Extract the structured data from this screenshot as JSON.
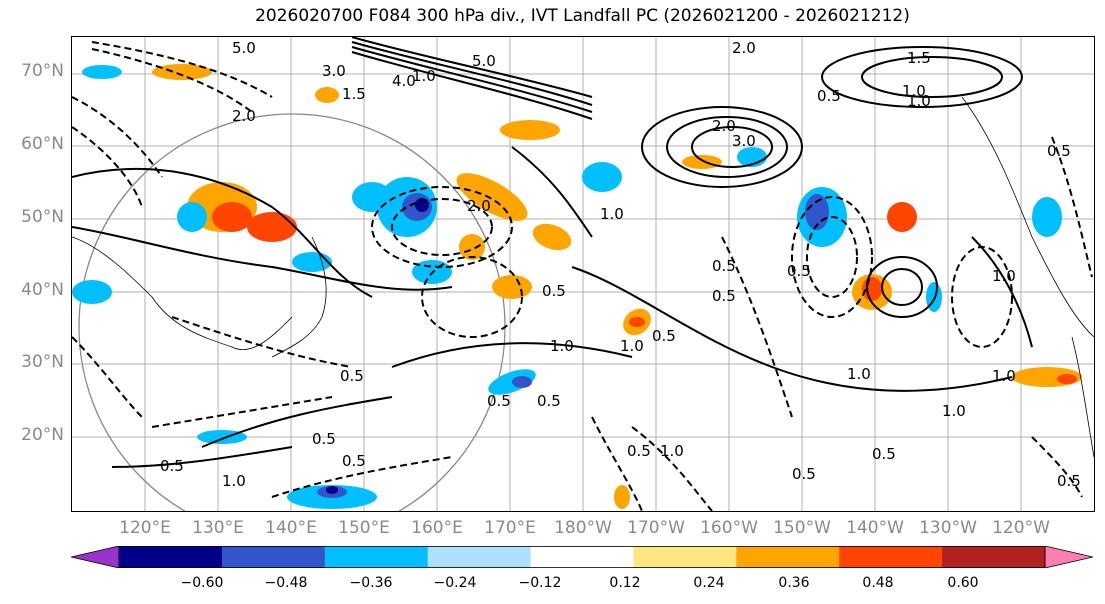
{
  "title": "2026020700 F084 300 hPa div., IVT Landfall PC (2026021200 - 2026021212)",
  "lat_labels": [
    "70°N",
    "60°N",
    "50°N",
    "40°N",
    "30°N",
    "20°N"
  ],
  "lon_labels": [
    "120°E",
    "130°E",
    "140°E",
    "150°E",
    "160°E",
    "170°E",
    "180°W",
    "170°W",
    "160°W",
    "150°W",
    "140°W",
    "130°W",
    "120°W"
  ],
  "colorbar": {
    "ticks": [
      "−0.60",
      "−0.48",
      "−0.36",
      "−0.24",
      "−0.12",
      "0.12",
      "0.24",
      "0.36",
      "0.48",
      "0.60"
    ],
    "colors": [
      "#9933cc",
      "#00008b",
      "#3355cc",
      "#00bfff",
      "#aee0fb",
      "#ffffff",
      "#ffe680",
      "#ffa500",
      "#ff4500",
      "#b22222",
      "#ff80b0"
    ]
  },
  "contour_labels": [
    "5.0",
    "3.0",
    "4.0",
    "5.0",
    "2.0",
    "1.5",
    "2.0",
    "1.0",
    "0.5",
    "1.0",
    "2.0",
    "3.0",
    "2.0",
    "1.0",
    "0.5",
    "1.5",
    "1.0",
    "0.5",
    "0.5",
    "1.0",
    "0.5",
    "0.5",
    "1.0",
    "0.5",
    "0.5",
    "0.5",
    "1.0",
    "0.5",
    "1.0",
    "0.5",
    "0.5",
    "1.0",
    "0.5",
    "0.5",
    "1.0",
    "0.5",
    "0.5",
    "1.0",
    "1.0",
    "0.5"
  ]
}
